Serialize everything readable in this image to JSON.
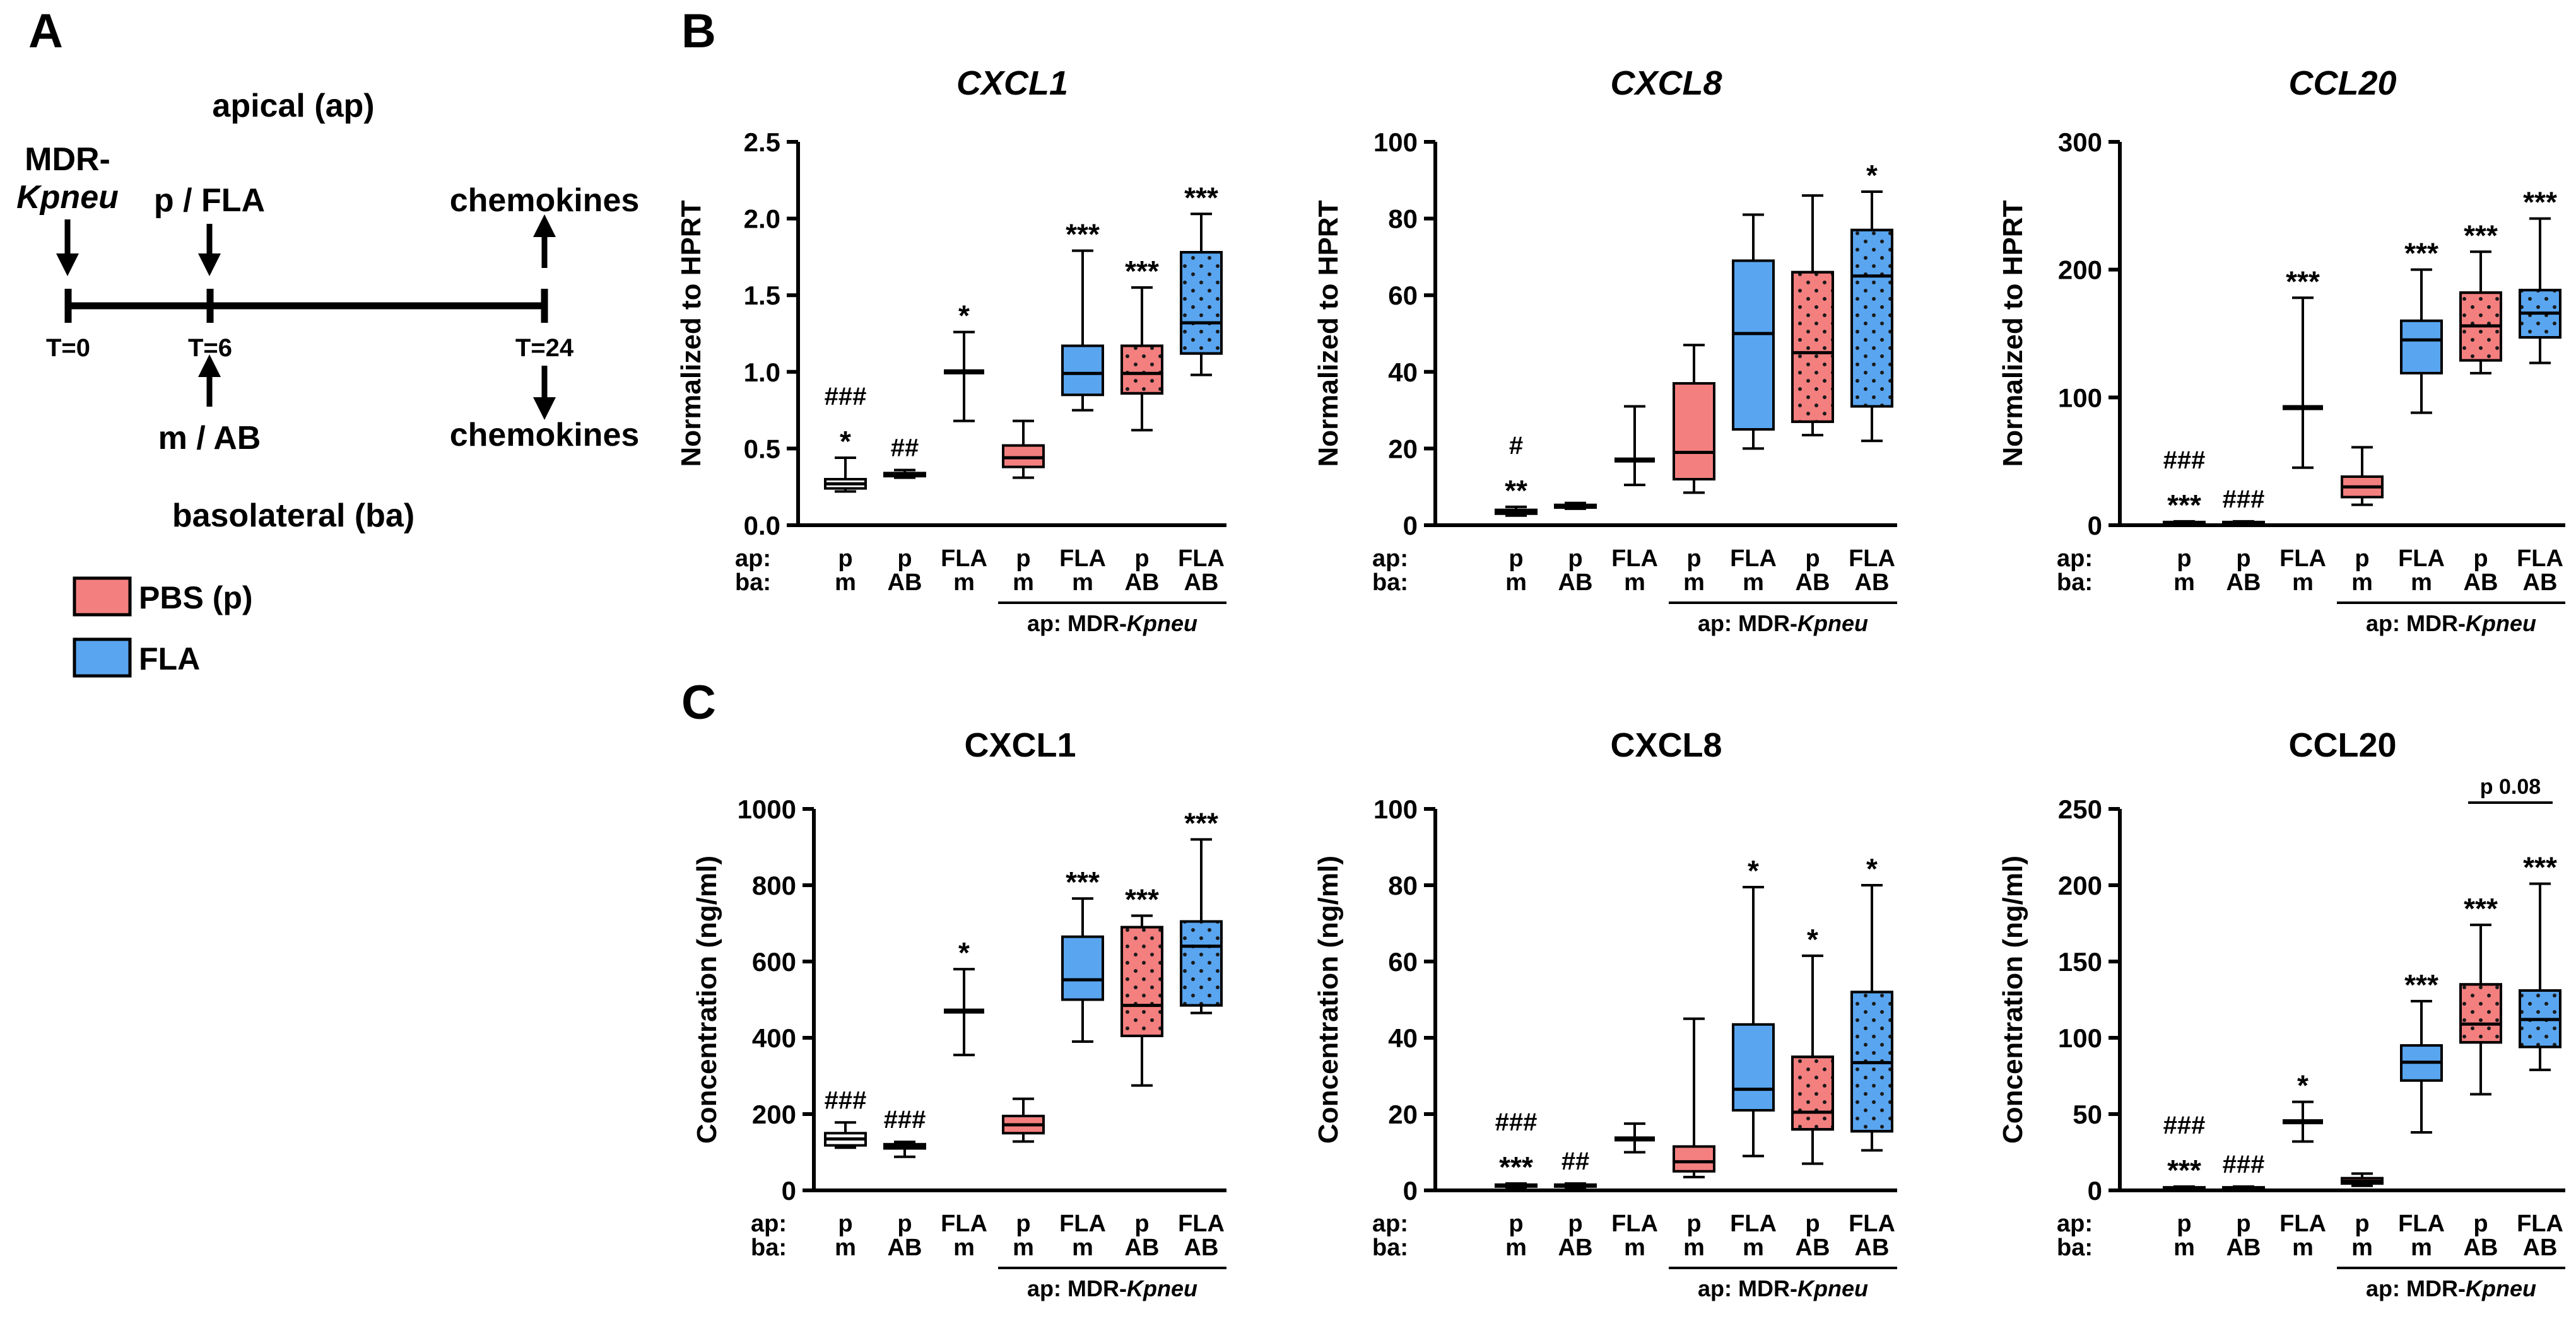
{
  "figure": {
    "panel_labels": {
      "A": "A",
      "B": "B",
      "C": "C"
    }
  },
  "timeline": {
    "top_label": "apical (ap)",
    "bottom_label": "basolateral (ba)",
    "mdr_label_line1": "MDR-",
    "mdr_label_line2": "Kpneu",
    "top_treatment": "p / FLA",
    "bottom_treatment": "m / AB",
    "chemokines_top": "chemokines",
    "chemokines_bottom": "chemokines",
    "ticks": [
      "T=0",
      "T=6",
      "T=24"
    ]
  },
  "legend": {
    "items": [
      {
        "label": "PBS (p)",
        "color": "#f47f7f"
      },
      {
        "label": "FLA",
        "color": "#59a5f0"
      }
    ]
  },
  "colors": {
    "pbs": "#f47f7f",
    "fla": "#59a5f0",
    "black": "#000000"
  },
  "xaxis": {
    "row_labels": [
      "ap:",
      "ba:"
    ],
    "groups": [
      [
        "p",
        "m"
      ],
      [
        "p",
        "AB"
      ],
      [
        "FLA",
        "m"
      ],
      [
        "p",
        "m"
      ],
      [
        "FLA",
        "m"
      ],
      [
        "p",
        "AB"
      ],
      [
        "FLA",
        "AB"
      ]
    ],
    "bracket_prefix": "ap: MDR-",
    "bracket_italic": "Kpneu"
  },
  "chart_data": [
    {
      "panel": "B",
      "title": "CXCL1",
      "italic_title": true,
      "type": "box",
      "ylabel": "Normalized to HPRT",
      "ylim": [
        0,
        2.5
      ],
      "yticks": [
        "0.0",
        "0.5",
        "1.0",
        "1.5",
        "2.0",
        "2.5"
      ],
      "ytick_values": [
        0,
        0.5,
        1,
        1.5,
        2,
        2.5
      ],
      "boxes": [
        {
          "min": 0.22,
          "q1": 0.24,
          "median": 0.27,
          "q3": 0.3,
          "max": 0.44,
          "fill": "white"
        },
        {
          "min": 0.31,
          "q1": 0.32,
          "median": 0.33,
          "q3": 0.34,
          "max": 0.36,
          "fill": "white"
        },
        {
          "min": 0.68,
          "q1": 1.0,
          "median": 1.0,
          "q3": 1.0,
          "max": 1.26,
          "fill": "white"
        },
        {
          "min": 0.31,
          "q1": 0.38,
          "median": 0.44,
          "q3": 0.52,
          "max": 0.68,
          "fill": "pbs"
        },
        {
          "min": 0.75,
          "q1": 0.85,
          "median": 0.99,
          "q3": 1.17,
          "max": 1.79,
          "fill": "fla"
        },
        {
          "min": 0.62,
          "q1": 0.86,
          "median": 0.99,
          "q3": 1.17,
          "max": 1.55,
          "fill": "pbs_dots"
        },
        {
          "min": 0.98,
          "q1": 1.12,
          "median": 1.32,
          "q3": 1.78,
          "max": 2.03,
          "fill": "fla_dots"
        }
      ],
      "annotations": [
        [
          "###",
          "*"
        ],
        [
          "##"
        ],
        [
          "*"
        ],
        [],
        [
          "***"
        ],
        [
          "***"
        ],
        [
          "***"
        ]
      ]
    },
    {
      "panel": "B",
      "title": "CXCL8",
      "italic_title": true,
      "type": "box",
      "ylabel": "Normalized to HPRT",
      "ylim": [
        0,
        100
      ],
      "yticks": [
        "0",
        "20",
        "40",
        "60",
        "80",
        "100"
      ],
      "ytick_values": [
        0,
        20,
        40,
        60,
        80,
        100
      ],
      "boxes": [
        {
          "min": 2.5,
          "q1": 3.0,
          "median": 3.5,
          "q3": 4.0,
          "max": 4.8,
          "fill": "white"
        },
        {
          "min": 4.3,
          "q1": 4.6,
          "median": 5.0,
          "q3": 5.3,
          "max": 5.8,
          "fill": "white"
        },
        {
          "min": 10.5,
          "q1": 17.0,
          "median": 17.0,
          "q3": 17.0,
          "max": 31.0,
          "fill": "white"
        },
        {
          "min": 8.5,
          "q1": 12.0,
          "median": 19.0,
          "q3": 37.0,
          "max": 47.0,
          "fill": "pbs"
        },
        {
          "min": 20.0,
          "q1": 25.0,
          "median": 50.0,
          "q3": 69.0,
          "max": 81.0,
          "fill": "fla"
        },
        {
          "min": 23.5,
          "q1": 27.0,
          "median": 45.0,
          "q3": 66.0,
          "max": 86.0,
          "fill": "pbs_dots"
        },
        {
          "min": 22.0,
          "q1": 31.0,
          "median": 65.0,
          "q3": 77.0,
          "max": 87.0,
          "fill": "fla_dots"
        }
      ],
      "annotations": [
        [
          "#",
          "**"
        ],
        [],
        [],
        [],
        [],
        [],
        [
          "*"
        ]
      ]
    },
    {
      "panel": "B",
      "title": "CCL20",
      "italic_title": true,
      "type": "box",
      "ylabel": "Normalized to HPRT",
      "ylim": [
        0,
        300
      ],
      "yticks": [
        "0",
        "100",
        "200",
        "300"
      ],
      "ytick_values": [
        0,
        100,
        200,
        300
      ],
      "boxes": [
        {
          "min": 1.0,
          "q1": 1.5,
          "median": 2.0,
          "q3": 2.5,
          "max": 3.0,
          "fill": "white"
        },
        {
          "min": 1.0,
          "q1": 1.5,
          "median": 2.0,
          "q3": 2.5,
          "max": 3.0,
          "fill": "white"
        },
        {
          "min": 45.0,
          "q1": 92.0,
          "median": 92.0,
          "q3": 92.0,
          "max": 178.0,
          "fill": "white"
        },
        {
          "min": 16.0,
          "q1": 22.0,
          "median": 30.0,
          "q3": 38.0,
          "max": 61.0,
          "fill": "pbs"
        },
        {
          "min": 88.0,
          "q1": 119.0,
          "median": 145.0,
          "q3": 160.0,
          "max": 200.0,
          "fill": "fla"
        },
        {
          "min": 119.0,
          "q1": 129.0,
          "median": 156.0,
          "q3": 182.0,
          "max": 214.0,
          "fill": "pbs_dots"
        },
        {
          "min": 127.0,
          "q1": 147.0,
          "median": 166.0,
          "q3": 184.0,
          "max": 240.0,
          "fill": "fla_dots"
        }
      ],
      "annotations": [
        [
          "###",
          "***"
        ],
        [
          "###"
        ],
        [
          "***"
        ],
        [],
        [
          "***"
        ],
        [
          "***"
        ],
        [
          "***"
        ]
      ]
    },
    {
      "panel": "C",
      "title": "CXCL1",
      "italic_title": false,
      "type": "box",
      "ylabel": "Concentration (ng/ml)",
      "ylim": [
        0,
        1000
      ],
      "yticks": [
        "0",
        "200",
        "400",
        "600",
        "800",
        "1000"
      ],
      "ytick_values": [
        0,
        200,
        400,
        600,
        800,
        1000
      ],
      "boxes": [
        {
          "min": 112,
          "q1": 118,
          "median": 135,
          "q3": 150,
          "max": 178,
          "fill": "white"
        },
        {
          "min": 88,
          "q1": 110,
          "median": 117,
          "q3": 121,
          "max": 127,
          "fill": "white"
        },
        {
          "min": 355,
          "q1": 470,
          "median": 470,
          "q3": 470,
          "max": 580,
          "fill": "white"
        },
        {
          "min": 128,
          "q1": 150,
          "median": 172,
          "q3": 195,
          "max": 240,
          "fill": "pbs"
        },
        {
          "min": 390,
          "q1": 500,
          "median": 552,
          "q3": 665,
          "max": 765,
          "fill": "fla"
        },
        {
          "min": 275,
          "q1": 405,
          "median": 485,
          "q3": 690,
          "max": 720,
          "fill": "pbs_dots"
        },
        {
          "min": 465,
          "q1": 485,
          "median": 640,
          "q3": 705,
          "max": 920,
          "fill": "fla_dots"
        }
      ],
      "annotations": [
        [
          "###"
        ],
        [
          "###"
        ],
        [
          "*"
        ],
        [],
        [
          "***"
        ],
        [
          "***"
        ],
        [
          "***"
        ]
      ]
    },
    {
      "panel": "C",
      "title": "CXCL8",
      "italic_title": false,
      "type": "box",
      "ylabel": "Concentration (ng/ml)",
      "ylim": [
        0,
        100
      ],
      "yticks": [
        "0",
        "20",
        "40",
        "60",
        "80",
        "100"
      ],
      "ytick_values": [
        0,
        20,
        40,
        60,
        80,
        100
      ],
      "boxes": [
        {
          "min": 0.8,
          "q1": 1.0,
          "median": 1.2,
          "q3": 1.5,
          "max": 1.8,
          "fill": "white"
        },
        {
          "min": 0.8,
          "q1": 1.0,
          "median": 1.2,
          "q3": 1.5,
          "max": 1.8,
          "fill": "white"
        },
        {
          "min": 10.0,
          "q1": 13.5,
          "median": 13.5,
          "q3": 13.5,
          "max": 17.5,
          "fill": "white"
        },
        {
          "min": 3.5,
          "q1": 5.0,
          "median": 7.5,
          "q3": 11.5,
          "max": 45.0,
          "fill": "pbs"
        },
        {
          "min": 9.0,
          "q1": 21.0,
          "median": 26.5,
          "q3": 43.5,
          "max": 79.5,
          "fill": "fla"
        },
        {
          "min": 7.0,
          "q1": 16.0,
          "median": 20.5,
          "q3": 35.0,
          "max": 61.5,
          "fill": "pbs_dots"
        },
        {
          "min": 10.5,
          "q1": 15.5,
          "median": 33.5,
          "q3": 52.0,
          "max": 80.0,
          "fill": "fla_dots"
        }
      ],
      "annotations": [
        [
          "###",
          "***"
        ],
        [
          "##"
        ],
        [],
        [],
        [
          "*"
        ],
        [
          "*"
        ],
        [
          "*"
        ]
      ]
    },
    {
      "panel": "C",
      "title": "CCL20",
      "italic_title": false,
      "type": "box",
      "ylabel": "Concentration (ng/ml)",
      "ylim": [
        0,
        250
      ],
      "yticks": [
        "0",
        "50",
        "100",
        "150",
        "200",
        "250"
      ],
      "ytick_values": [
        0,
        50,
        100,
        150,
        200,
        250
      ],
      "boxes": [
        {
          "min": 0.5,
          "q1": 1.0,
          "median": 1.5,
          "q3": 2.0,
          "max": 2.5,
          "fill": "white"
        },
        {
          "min": 0.5,
          "q1": 1.0,
          "median": 1.5,
          "q3": 2.0,
          "max": 2.5,
          "fill": "white"
        },
        {
          "min": 32.0,
          "q1": 45.0,
          "median": 45.0,
          "q3": 45.0,
          "max": 58.0,
          "fill": "white"
        },
        {
          "min": 3.0,
          "q1": 4.5,
          "median": 6.0,
          "q3": 8.0,
          "max": 11.0,
          "fill": "pbs"
        },
        {
          "min": 38.0,
          "q1": 72.0,
          "median": 84.0,
          "q3": 95.0,
          "max": 124.0,
          "fill": "fla"
        },
        {
          "min": 63.0,
          "q1": 97.0,
          "median": 109.0,
          "q3": 135.0,
          "max": 174.0,
          "fill": "pbs_dots"
        },
        {
          "min": 79.0,
          "q1": 94.0,
          "median": 112.0,
          "q3": 131.0,
          "max": 201.0,
          "fill": "fla_dots"
        }
      ],
      "annotations": [
        [
          "###",
          "***"
        ],
        [
          "###"
        ],
        [
          "*"
        ],
        [],
        [
          "***"
        ],
        [
          "***"
        ],
        [
          "***"
        ]
      ],
      "comparison": {
        "from": 5,
        "to": 6,
        "label": "p 0.08"
      }
    }
  ]
}
